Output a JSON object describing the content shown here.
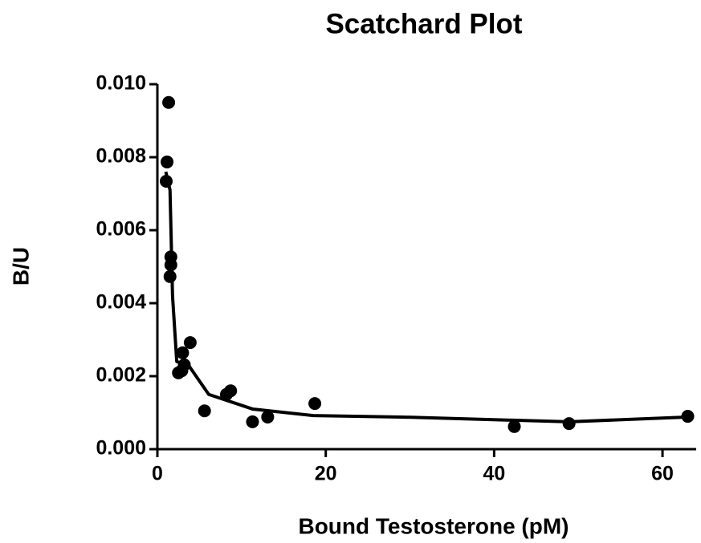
{
  "chart_data": {
    "type": "scatter",
    "title": "Scatchard Plot",
    "x_label": "Bound Testosterone (pM)",
    "y_label": "B/U",
    "x": [
      1.34,
      1.15,
      1.05,
      1.6,
      1.6,
      1.5,
      2.5,
      3.0,
      3.2,
      3.9,
      2.9,
      5.6,
      8.2,
      8.7,
      11.3,
      13.1,
      18.7,
      42.4,
      48.9,
      63.0
    ],
    "values": [
      0.0095,
      0.00787,
      0.00734,
      0.00527,
      0.00505,
      0.00473,
      0.00209,
      0.00264,
      0.00231,
      0.00292,
      0.00215,
      0.00105,
      0.0015,
      0.0016,
      0.00075,
      0.00088,
      0.00125,
      0.00062,
      0.0007,
      0.0009
    ],
    "color": "#000000",
    "fit": {
      "x": [
        1.0,
        1.5,
        1.8,
        2.3,
        3.7,
        6.1,
        11.3,
        18.5,
        29,
        48.9,
        62.9
      ],
      "values": [
        0.0076,
        0.0071,
        0.0042,
        0.0024,
        0.0023,
        0.0015,
        0.0011,
        0.00092,
        0.00088,
        0.00075,
        0.00088
      ]
    },
    "xlim": [
      0,
      64
    ],
    "ylim": [
      0,
      0.01
    ],
    "xticks": [
      0,
      20,
      40,
      60
    ],
    "yticks": [
      {
        "value": 0,
        "label": "0.000"
      },
      {
        "value": 0.002,
        "label": "0.002"
      },
      {
        "value": 0.004,
        "label": "0.004"
      },
      {
        "value": 0.006,
        "label": "0.006"
      },
      {
        "value": 0.008,
        "label": "0.008"
      },
      {
        "value": 0.01,
        "label": "0.010"
      }
    ]
  }
}
